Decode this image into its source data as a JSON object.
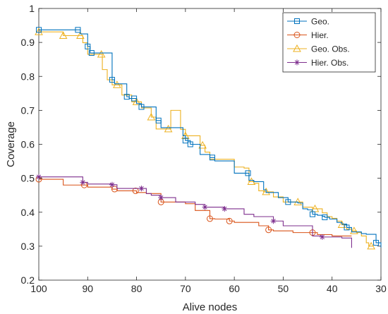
{
  "chart_data": {
    "type": "line",
    "title": "",
    "xlabel": "Alive nodes",
    "ylabel": "Coverage",
    "xlim": [
      100,
      30
    ],
    "x_reversed": true,
    "ylim": [
      0.2,
      1.0
    ],
    "xticks": [
      100,
      90,
      80,
      70,
      60,
      50,
      40,
      30
    ],
    "yticks": [
      0.2,
      0.3,
      0.4,
      0.5,
      0.6,
      0.7,
      0.8,
      0.9,
      1.0
    ],
    "xtick_labels": [
      "100",
      "90",
      "80",
      "70",
      "60",
      "50",
      "40",
      "30"
    ],
    "ytick_labels": [
      "0.2",
      "0.3",
      "0.4",
      "0.5",
      "0.6",
      "0.7",
      "0.8",
      "0.9",
      "1"
    ],
    "grid": false,
    "legend_position": "top-right",
    "series": [
      {
        "name": "Geo.",
        "color": "#0072BD",
        "marker": "square",
        "x": [
          100,
          92,
          91.5,
          90,
          89.5,
          85,
          84.5,
          82,
          81.5,
          80,
          79,
          76,
          75,
          71.5,
          70.5,
          70,
          69,
          67,
          65,
          64,
          60.5,
          60,
          57.5,
          57,
          56,
          54,
          53.5,
          51,
          49,
          47,
          46,
          45,
          44,
          43,
          42,
          41.5,
          40.5,
          39,
          38,
          37,
          36,
          35,
          34,
          33,
          32,
          31,
          30
        ],
        "y": [
          0.937,
          0.937,
          0.925,
          0.888,
          0.869,
          0.79,
          0.778,
          0.74,
          0.735,
          0.72,
          0.71,
          0.67,
          0.649,
          0.649,
          0.625,
          0.611,
          0.6,
          0.57,
          0.561,
          0.551,
          0.551,
          0.515,
          0.515,
          0.494,
          0.49,
          0.466,
          0.458,
          0.443,
          0.43,
          0.427,
          0.41,
          0.407,
          0.394,
          0.391,
          0.388,
          0.385,
          0.38,
          0.37,
          0.365,
          0.355,
          0.342,
          0.342,
          0.337,
          0.335,
          0.335,
          0.31,
          0.296
        ]
      },
      {
        "name": "Hier.",
        "color": "#D95319",
        "marker": "circle",
        "x": [
          100,
          95,
          90,
          85,
          84,
          80,
          78,
          75,
          70,
          68,
          65,
          64,
          61,
          60,
          55,
          53,
          52,
          50,
          48,
          45,
          43,
          40,
          36
        ],
        "y": [
          0.497,
          0.48,
          0.474,
          0.468,
          0.463,
          0.458,
          0.455,
          0.43,
          0.425,
          0.405,
          0.381,
          0.38,
          0.374,
          0.37,
          0.36,
          0.348,
          0.345,
          0.345,
          0.34,
          0.34,
          0.334,
          0.33,
          0.33
        ]
      },
      {
        "name": "Geo. Obs.",
        "color": "#EDB120",
        "marker": "triangle",
        "x": [
          100,
          95,
          92,
          91,
          90,
          88,
          87,
          86,
          85,
          84,
          83,
          81,
          80,
          79,
          77,
          76,
          74,
          73,
          71,
          70,
          67,
          66,
          65,
          63,
          60,
          58,
          57,
          56,
          55,
          54,
          52,
          50,
          48,
          46,
          44,
          42,
          41,
          40,
          39,
          38,
          37,
          36,
          35,
          34,
          33,
          32.5,
          31.5
        ],
        "y": [
          0.931,
          0.92,
          0.92,
          0.899,
          0.865,
          0.865,
          0.82,
          0.79,
          0.775,
          0.775,
          0.745,
          0.725,
          0.725,
          0.707,
          0.68,
          0.645,
          0.645,
          0.7,
          0.644,
          0.625,
          0.597,
          0.577,
          0.556,
          0.556,
          0.533,
          0.53,
          0.49,
          0.485,
          0.463,
          0.46,
          0.445,
          0.43,
          0.43,
          0.415,
          0.41,
          0.398,
          0.387,
          0.382,
          0.374,
          0.363,
          0.35,
          0.345,
          0.34,
          0.33,
          0.31,
          0.3,
          0.3
        ]
      },
      {
        "name": "Hier. Obs.",
        "color": "#7E2F8E",
        "marker": "asterisk",
        "x": [
          100,
          92,
          91,
          90,
          86,
          85,
          84,
          80,
          78,
          77,
          75,
          72,
          68,
          66,
          64,
          62,
          58,
          56,
          52,
          50,
          44,
          42,
          38,
          36
        ],
        "y": [
          0.504,
          0.504,
          0.488,
          0.483,
          0.483,
          0.481,
          0.47,
          0.47,
          0.455,
          0.45,
          0.443,
          0.43,
          0.423,
          0.415,
          0.415,
          0.41,
          0.394,
          0.387,
          0.374,
          0.36,
          0.33,
          0.327,
          0.324,
          0.295
        ]
      }
    ],
    "markers": [
      {
        "series": 0,
        "x": [
          100,
          92,
          90,
          89.2,
          85,
          82,
          80.5,
          79,
          75.5,
          70,
          69,
          64.5,
          57.2,
          49,
          44,
          41.5,
          37,
          31
        ]
      },
      {
        "series": 1,
        "x": [
          100,
          90.7,
          84.5,
          80.2,
          75,
          65,
          61,
          53,
          44
        ]
      },
      {
        "series": 2,
        "x": [
          100,
          95,
          91.5,
          87.2,
          84,
          80,
          77,
          73.5,
          70,
          66.5,
          56.5,
          53.5,
          47,
          43.5,
          38,
          35.5,
          32
        ]
      },
      {
        "series": 3,
        "x": [
          100,
          91,
          85,
          79,
          75,
          66,
          62,
          52,
          42
        ]
      }
    ]
  }
}
